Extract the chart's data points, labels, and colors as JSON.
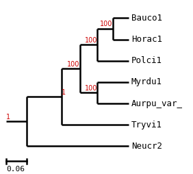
{
  "taxa": [
    "Bauco1",
    "Horac1",
    "Polci1",
    "Myrdu1",
    "Aurpu_var_",
    "Tryvi1",
    "Neucr2"
  ],
  "background_color": "#ffffff",
  "line_color": "#000000",
  "bootstrap_color": "#cc0000",
  "label_fontsize": 9,
  "bootstrap_fontsize": 7,
  "scale_label": "0.06",
  "lw": 1.8
}
